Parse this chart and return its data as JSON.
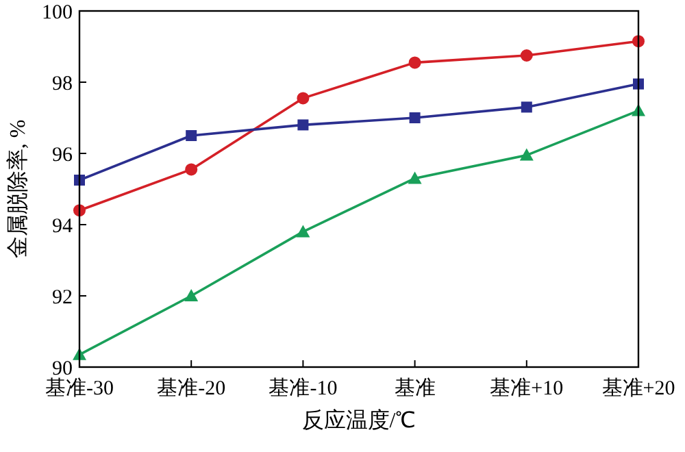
{
  "chart_data": {
    "type": "line",
    "xlabel": "反应温度/℃",
    "ylabel": "金属脱除率, %",
    "categories": [
      "基准-30",
      "基准-20",
      "基准-10",
      "基准",
      "基准+10",
      "基准+20"
    ],
    "ylim": [
      90,
      100
    ],
    "yticks": [
      90,
      92,
      94,
      96,
      98,
      100
    ],
    "grid": false,
    "series": [
      {
        "color": "#d42027",
        "marker": "circle",
        "values": [
          94.4,
          95.55,
          97.55,
          98.55,
          98.75,
          99.15
        ]
      },
      {
        "color": "#2b2f8f",
        "marker": "square",
        "values": [
          95.25,
          96.5,
          96.8,
          97.0,
          97.3,
          97.95
        ]
      },
      {
        "color": "#1aa05a",
        "marker": "triangle",
        "values": [
          90.35,
          92.0,
          93.8,
          95.3,
          95.95,
          97.2
        ]
      }
    ]
  }
}
